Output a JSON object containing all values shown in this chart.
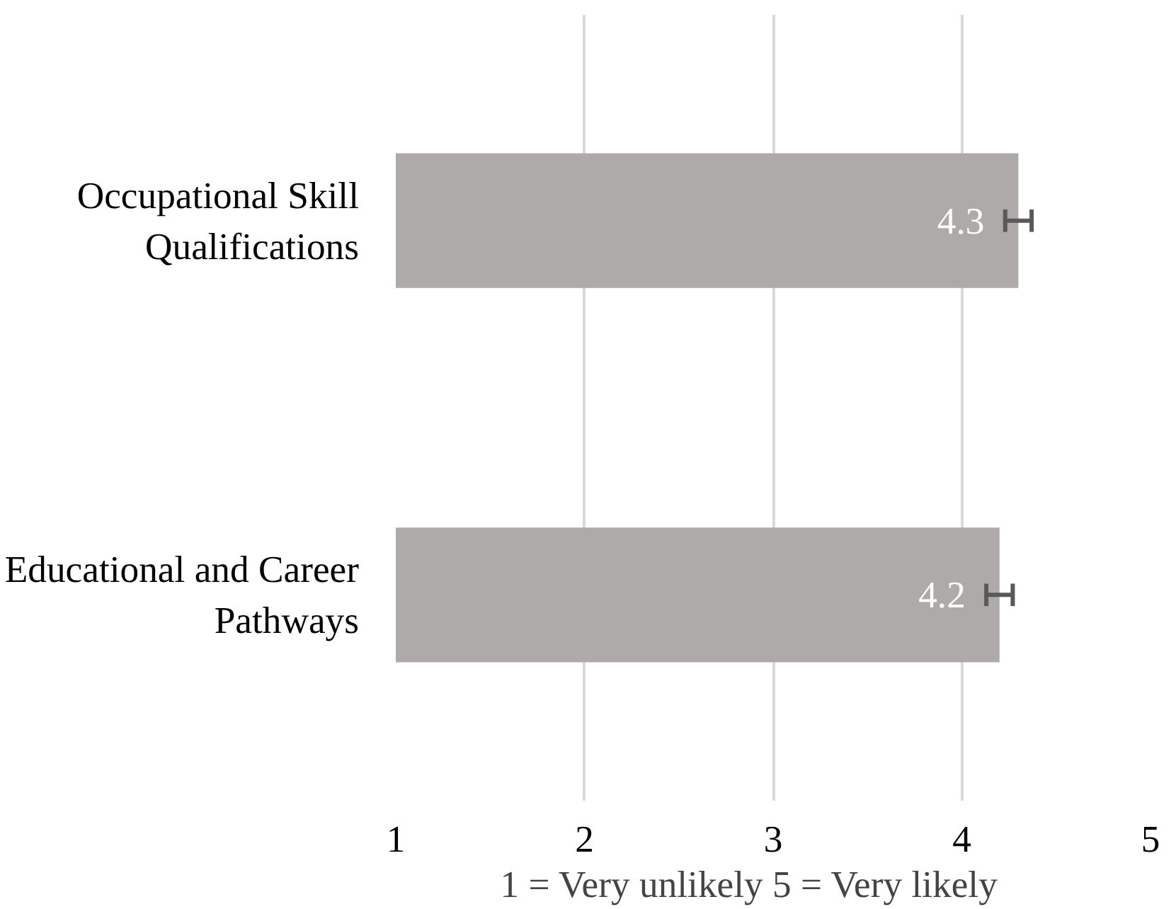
{
  "chart_data": {
    "type": "bar",
    "orientation": "horizontal",
    "categories": [
      "Occupational Skill Qualifications",
      "Educational and Career Pathways"
    ],
    "values": [
      4.3,
      4.2
    ],
    "errors": [
      0.07,
      0.07
    ],
    "color": "#aeaaaa",
    "xlim": [
      1,
      5
    ],
    "xticks": [
      1,
      2,
      3,
      4,
      5
    ],
    "grid": "x",
    "data_labels": true,
    "xlabel": "1 = Very unlikely      5 = Very likely"
  }
}
